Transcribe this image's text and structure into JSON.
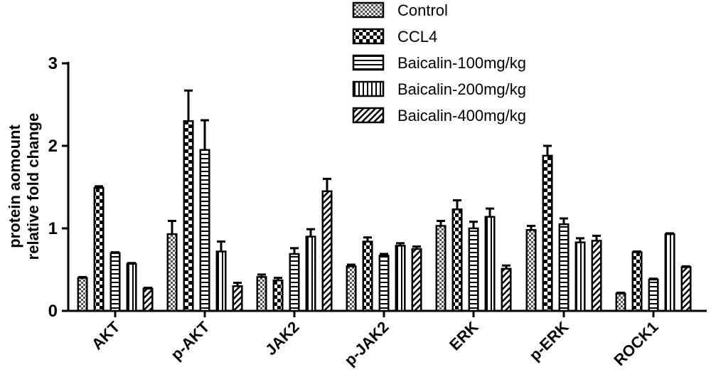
{
  "chart_data": {
    "type": "bar",
    "ylabel_lines": [
      "protein aomount",
      "relative fold change"
    ],
    "xlabel": "",
    "ylim": [
      0,
      3
    ],
    "yticks": [
      0,
      1,
      2,
      3
    ],
    "categories": [
      "AKT",
      "p-AKT",
      "JAK2",
      "p-JAK2",
      "ERK",
      "p-ERK",
      "ROCK1"
    ],
    "legend_position": "top-right",
    "series": [
      {
        "name": "Control",
        "pattern": "checker",
        "values": [
          0.4,
          0.93,
          0.41,
          0.54,
          1.03,
          0.98,
          0.21
        ],
        "errors": [
          0.01,
          0.16,
          0.03,
          0.02,
          0.06,
          0.05,
          0.01
        ]
      },
      {
        "name": "CCL4",
        "pattern": "bigchecker",
        "values": [
          1.49,
          2.3,
          0.37,
          0.84,
          1.23,
          1.88,
          0.71
        ],
        "errors": [
          0.02,
          0.37,
          0.03,
          0.05,
          0.11,
          0.12,
          0.01
        ]
      },
      {
        "name": "Baicalin-100mg/kg",
        "pattern": "hstripe",
        "values": [
          0.7,
          1.95,
          0.69,
          0.67,
          1.0,
          1.05,
          0.38
        ],
        "errors": [
          0.01,
          0.36,
          0.07,
          0.02,
          0.08,
          0.07,
          0.01
        ]
      },
      {
        "name": "Baicalin-200mg/kg",
        "pattern": "vstripe",
        "values": [
          0.57,
          0.72,
          0.9,
          0.79,
          1.14,
          0.83,
          0.93
        ],
        "errors": [
          0.01,
          0.12,
          0.09,
          0.03,
          0.1,
          0.05,
          0.01
        ]
      },
      {
        "name": "Baicalin-400mg/kg",
        "pattern": "diag",
        "values": [
          0.27,
          0.3,
          1.45,
          0.75,
          0.51,
          0.85,
          0.53
        ],
        "errors": [
          0.01,
          0.04,
          0.15,
          0.03,
          0.04,
          0.06,
          0.01
        ]
      }
    ]
  }
}
